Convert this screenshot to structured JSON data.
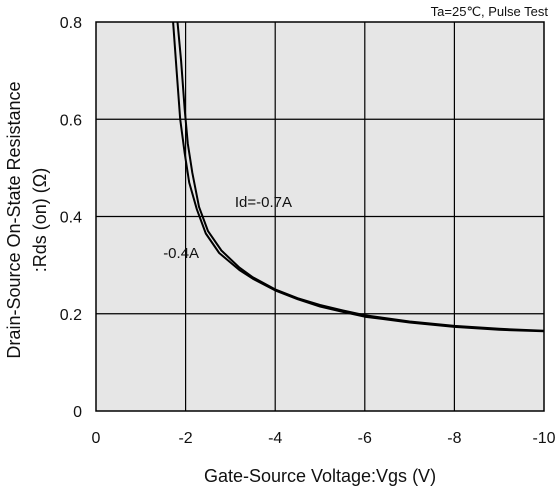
{
  "chart_data": {
    "type": "line",
    "title": "",
    "condition_note": "Ta=25℃, Pulse Test",
    "xlabel": "Gate-Source Voltage:Vgs  (V)",
    "ylabel_line1": "Drain-Source On-State Resistance",
    "ylabel_line2": ":Rds  (on) (Ω)",
    "xlim": [
      0,
      -10
    ],
    "ylim": [
      0,
      0.8
    ],
    "x_ticks": [
      "0",
      "-2",
      "-4",
      "-6",
      "-8",
      "-10"
    ],
    "y_ticks": [
      "0",
      "0.2",
      "0.4",
      "0.6",
      "0.8"
    ],
    "grid": true,
    "background": "#e6e6e6",
    "line_color": "#000000",
    "series": [
      {
        "name": "Id=-0.7A",
        "points": [
          [
            -1.82,
            0.8
          ],
          [
            -1.9,
            0.72
          ],
          [
            -1.98,
            0.62
          ],
          [
            -2.05,
            0.55
          ],
          [
            -2.15,
            0.49
          ],
          [
            -2.3,
            0.42
          ],
          [
            -2.5,
            0.37
          ],
          [
            -2.8,
            0.33
          ],
          [
            -3.2,
            0.295
          ],
          [
            -3.5,
            0.275
          ],
          [
            -4.0,
            0.25
          ],
          [
            -4.5,
            0.232
          ],
          [
            -5.0,
            0.218
          ],
          [
            -5.5,
            0.207
          ],
          [
            -6.0,
            0.197
          ],
          [
            -7.0,
            0.184
          ],
          [
            -8.0,
            0.175
          ],
          [
            -9.0,
            0.169
          ],
          [
            -10.0,
            0.165
          ]
        ]
      },
      {
        "name": "-0.4A",
        "points": [
          [
            -1.72,
            0.8
          ],
          [
            -1.8,
            0.7
          ],
          [
            -1.88,
            0.6
          ],
          [
            -1.98,
            0.53
          ],
          [
            -2.08,
            0.47
          ],
          [
            -2.25,
            0.415
          ],
          [
            -2.45,
            0.365
          ],
          [
            -2.75,
            0.325
          ],
          [
            -3.2,
            0.29
          ],
          [
            -3.5,
            0.272
          ],
          [
            -4.0,
            0.248
          ],
          [
            -4.5,
            0.23
          ],
          [
            -5.0,
            0.215
          ],
          [
            -5.5,
            0.204
          ],
          [
            -6.0,
            0.194
          ],
          [
            -7.0,
            0.182
          ],
          [
            -8.0,
            0.173
          ],
          [
            -9.0,
            0.167
          ],
          [
            -10.0,
            0.164
          ]
        ]
      }
    ],
    "annotations": [
      {
        "text": "Id=-0.7A",
        "x": -3.1,
        "y": 0.42
      },
      {
        "text": "-0.4A",
        "x": -1.5,
        "y": 0.315
      }
    ]
  }
}
